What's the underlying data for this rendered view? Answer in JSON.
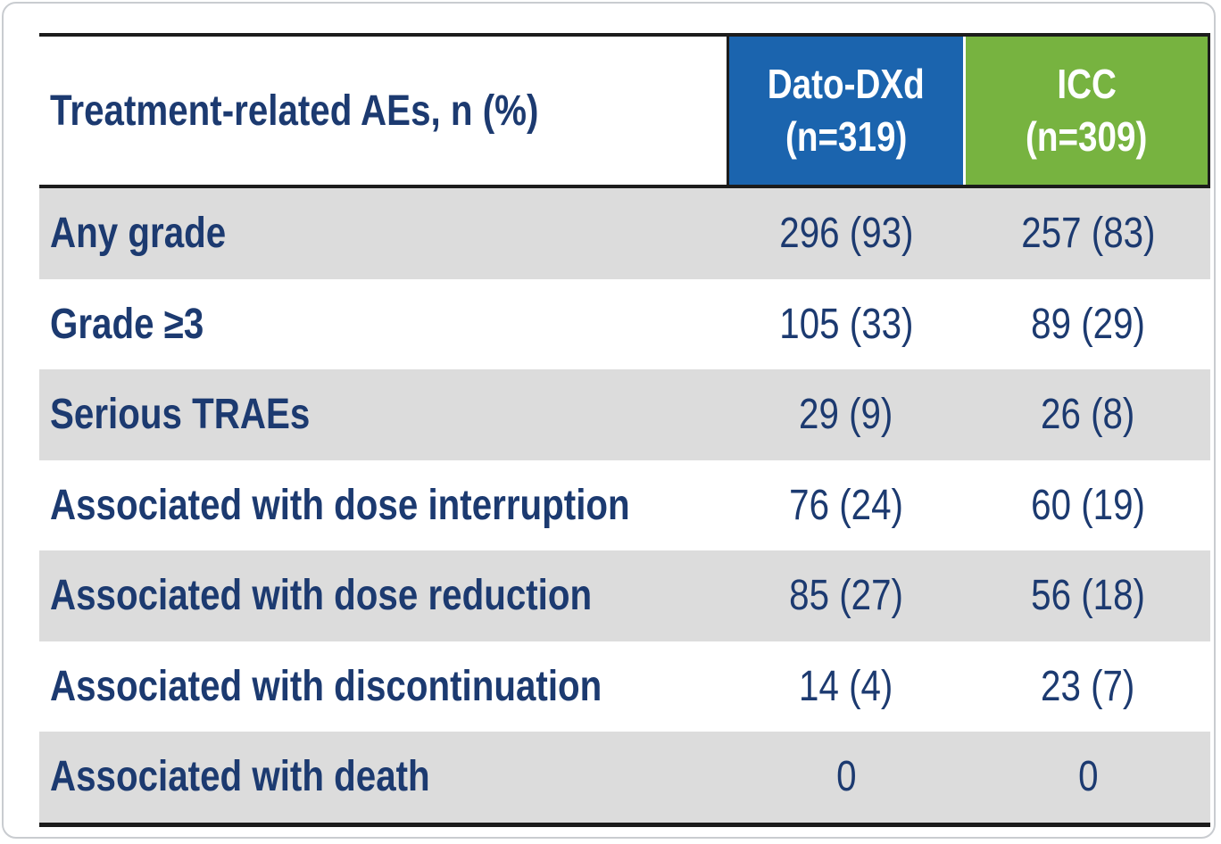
{
  "colors": {
    "dato_column_blue": "#1b64ae",
    "icc_column_green": "#77b340",
    "text_navy": "#1c3a70",
    "row_alt_gray": "#dcdcdc",
    "rule_black": "#1c1c1c"
  },
  "table": {
    "header": {
      "row_label": "Treatment-related AEs, n (%)",
      "columns": [
        {
          "name": "Dato-DXd",
          "n": "(n=319)"
        },
        {
          "name": "ICC",
          "n": "(n=309)"
        }
      ]
    },
    "rows": [
      {
        "label": "Any grade",
        "dato": "296 (93)",
        "icc": "257 (83)"
      },
      {
        "label": "Grade ≥3",
        "dato": "105 (33)",
        "icc": "89 (29)"
      },
      {
        "label": "Serious TRAEs",
        "dato": "29 (9)",
        "icc": "26 (8)"
      },
      {
        "label": "Associated with dose interruption",
        "dato": "76 (24)",
        "icc": "60 (19)"
      },
      {
        "label": "Associated with dose reduction",
        "dato": "85 (27)",
        "icc": "56 (18)"
      },
      {
        "label": "Associated with discontinuation",
        "dato": "14 (4)",
        "icc": "23 (7)"
      },
      {
        "label": "Associated with death",
        "dato": "0",
        "icc": "0"
      }
    ]
  }
}
